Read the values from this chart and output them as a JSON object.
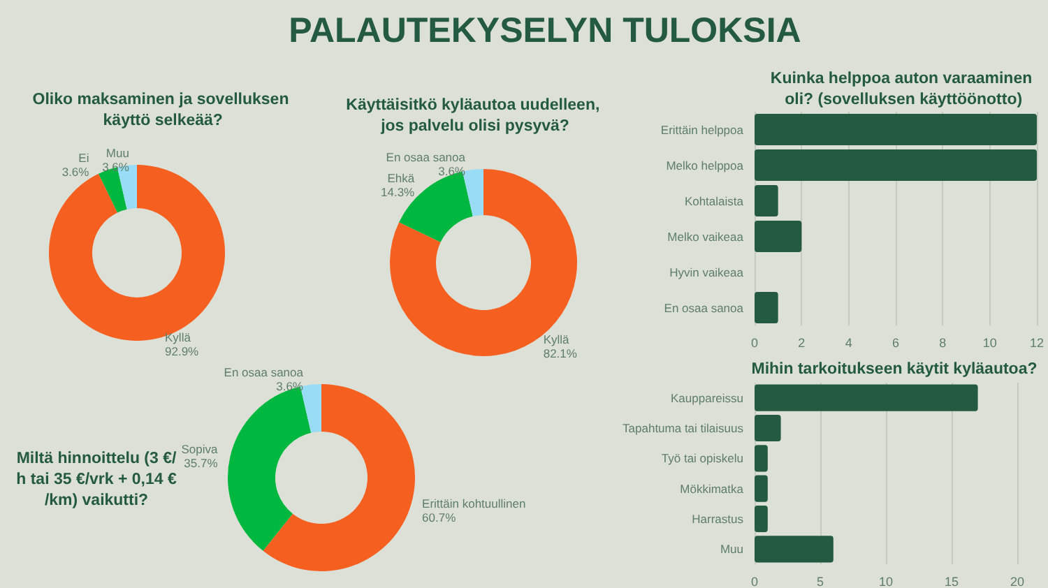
{
  "chart_data": [
    {
      "type": "other",
      "title": "PALAUTEKYSELYN TULOKSIA"
    },
    {
      "type": "donut",
      "title": "Oliko maksaminen ja sovelluksen käyttö selkeää?",
      "categories": [
        "Kyllä",
        "Ei",
        "Muu"
      ],
      "values": [
        92.9,
        3.6,
        3.6
      ],
      "colors": [
        "#f55f20",
        "#00b83f",
        "#99dcf5"
      ],
      "value_labels": [
        "92.9%",
        "3.6%",
        "3.6%"
      ]
    },
    {
      "type": "donut",
      "title": "Käyttäisitkö kyläautoa uudelleen, jos palvelu olisi pysyvä?",
      "categories": [
        "Kyllä",
        "Ehkä",
        "En osaa sanoa"
      ],
      "values": [
        82.1,
        14.3,
        3.6
      ],
      "colors": [
        "#f55f20",
        "#00b83f",
        "#99dcf5"
      ],
      "value_labels": [
        "82.1%",
        "14.3%",
        "3.6%"
      ]
    },
    {
      "type": "bar",
      "orientation": "horizontal",
      "title": "Kuinka helppoa auton varaaminen oli? (sovelluksen käyttöönotto)",
      "categories": [
        "Erittäin helppoa",
        "Melko helppoa",
        "Kohtalaista",
        "Melko vaikeaa",
        "Hyvin vaikeaa",
        "En osaa sanoa"
      ],
      "values": [
        12,
        12,
        1,
        2,
        0,
        1
      ],
      "color": "#245a41",
      "xlim": [
        0,
        12
      ],
      "xticks": [
        0,
        2,
        4,
        6,
        8,
        10,
        12
      ],
      "grid": "x"
    },
    {
      "type": "donut",
      "title": "Miltä hinnoittelu (3 €/h tai 35 €/vrk + 0,14 €/km) vaikutti?",
      "categories": [
        "Erittäin kohtuullinen",
        "Sopiva",
        "En osaa sanoa"
      ],
      "values": [
        60.7,
        35.7,
        3.6
      ],
      "colors": [
        "#f55f20",
        "#00b83f",
        "#99dcf5"
      ],
      "value_labels": [
        "60.7%",
        "35.7%",
        "3.6%"
      ]
    },
    {
      "type": "bar",
      "orientation": "horizontal",
      "title": "Mihin tarkoitukseen käytit kyläautoa?",
      "categories": [
        "Kauppareissu",
        "Tapahtuma tai tilaisuus",
        "Työ tai opiskelu",
        "Mökkimatka",
        "Harrastus",
        "Muu"
      ],
      "values": [
        17,
        2,
        1,
        1,
        1,
        6
      ],
      "color": "#245a41",
      "xlim": [
        0,
        20
      ],
      "xticks": [
        0,
        5,
        10,
        15,
        20
      ],
      "grid": "x"
    }
  ]
}
